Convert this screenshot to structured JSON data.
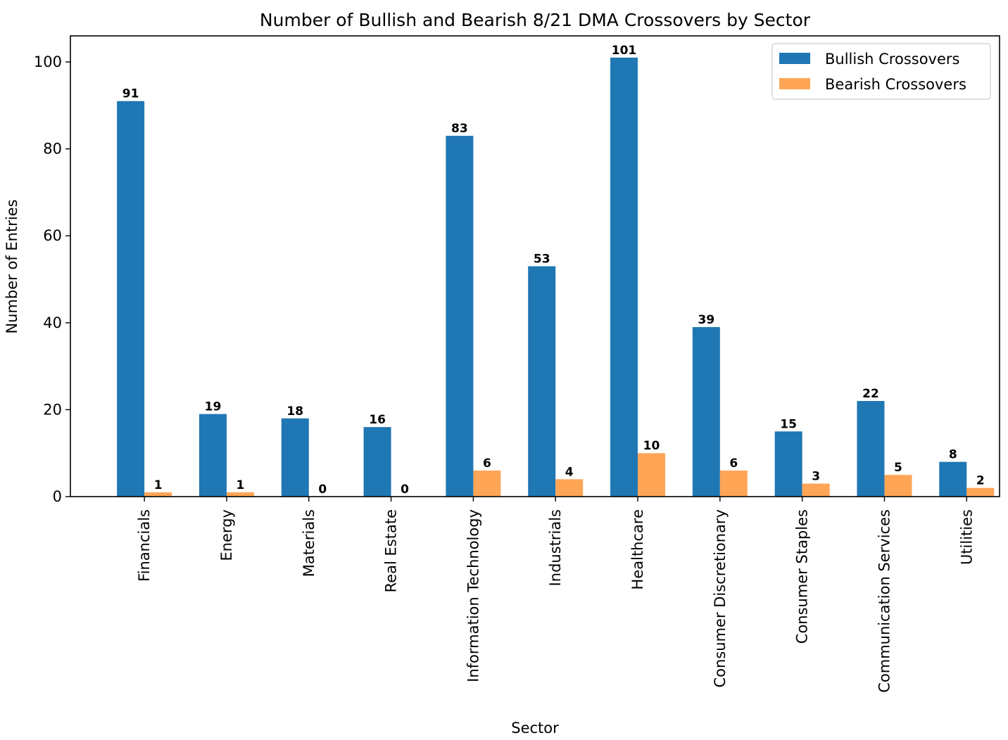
{
  "chart_data": {
    "type": "bar",
    "title": "Number of Bullish and Bearish 8/21 DMA Crossovers by Sector",
    "xlabel": "Sector",
    "ylabel": "Number of Entries",
    "ylim": [
      0,
      106
    ],
    "yticks": [
      0,
      20,
      40,
      60,
      80,
      100
    ],
    "grid": false,
    "legend_position": "top-right",
    "categories": [
      "Financials",
      "Energy",
      "Materials",
      "Real Estate",
      "Information Technology",
      "Industrials",
      "Healthcare",
      "Consumer Discretionary",
      "Consumer Staples",
      "Communication Services",
      "Utilities"
    ],
    "series": [
      {
        "name": "Bullish Crossovers",
        "color": "#1f77b4",
        "values": [
          91,
          19,
          18,
          16,
          83,
          53,
          101,
          39,
          15,
          22,
          8
        ]
      },
      {
        "name": "Bearish Crossovers",
        "color": "#ffa556",
        "values": [
          1,
          1,
          0,
          0,
          6,
          4,
          10,
          6,
          3,
          5,
          2
        ]
      }
    ]
  }
}
